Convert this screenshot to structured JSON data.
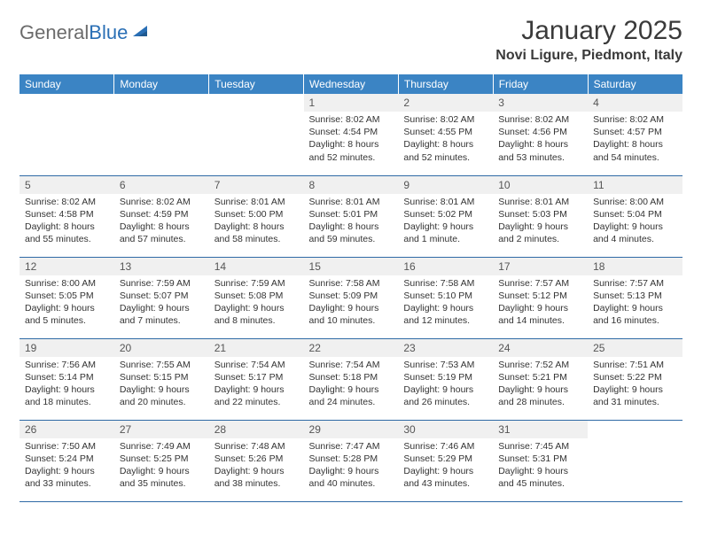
{
  "brand": {
    "name1": "General",
    "name2": "Blue"
  },
  "header": {
    "month_title": "January 2025",
    "location": "Novi Ligure, Piedmont, Italy"
  },
  "colors": {
    "header_bg": "#3b84c4",
    "header_text": "#ffffff",
    "daynum_bg": "#f0f0f0",
    "row_border": "#2f6aa5",
    "logo_gray": "#6b6b6b",
    "logo_blue": "#2a6fb5"
  },
  "columns": [
    "Sunday",
    "Monday",
    "Tuesday",
    "Wednesday",
    "Thursday",
    "Friday",
    "Saturday"
  ],
  "weeks": [
    [
      null,
      null,
      null,
      {
        "n": "1",
        "sr": "8:02 AM",
        "ss": "4:54 PM",
        "dl": "8 hours and 52 minutes."
      },
      {
        "n": "2",
        "sr": "8:02 AM",
        "ss": "4:55 PM",
        "dl": "8 hours and 52 minutes."
      },
      {
        "n": "3",
        "sr": "8:02 AM",
        "ss": "4:56 PM",
        "dl": "8 hours and 53 minutes."
      },
      {
        "n": "4",
        "sr": "8:02 AM",
        "ss": "4:57 PM",
        "dl": "8 hours and 54 minutes."
      }
    ],
    [
      {
        "n": "5",
        "sr": "8:02 AM",
        "ss": "4:58 PM",
        "dl": "8 hours and 55 minutes."
      },
      {
        "n": "6",
        "sr": "8:02 AM",
        "ss": "4:59 PM",
        "dl": "8 hours and 57 minutes."
      },
      {
        "n": "7",
        "sr": "8:01 AM",
        "ss": "5:00 PM",
        "dl": "8 hours and 58 minutes."
      },
      {
        "n": "8",
        "sr": "8:01 AM",
        "ss": "5:01 PM",
        "dl": "8 hours and 59 minutes."
      },
      {
        "n": "9",
        "sr": "8:01 AM",
        "ss": "5:02 PM",
        "dl": "9 hours and 1 minute."
      },
      {
        "n": "10",
        "sr": "8:01 AM",
        "ss": "5:03 PM",
        "dl": "9 hours and 2 minutes."
      },
      {
        "n": "11",
        "sr": "8:00 AM",
        "ss": "5:04 PM",
        "dl": "9 hours and 4 minutes."
      }
    ],
    [
      {
        "n": "12",
        "sr": "8:00 AM",
        "ss": "5:05 PM",
        "dl": "9 hours and 5 minutes."
      },
      {
        "n": "13",
        "sr": "7:59 AM",
        "ss": "5:07 PM",
        "dl": "9 hours and 7 minutes."
      },
      {
        "n": "14",
        "sr": "7:59 AM",
        "ss": "5:08 PM",
        "dl": "9 hours and 8 minutes."
      },
      {
        "n": "15",
        "sr": "7:58 AM",
        "ss": "5:09 PM",
        "dl": "9 hours and 10 minutes."
      },
      {
        "n": "16",
        "sr": "7:58 AM",
        "ss": "5:10 PM",
        "dl": "9 hours and 12 minutes."
      },
      {
        "n": "17",
        "sr": "7:57 AM",
        "ss": "5:12 PM",
        "dl": "9 hours and 14 minutes."
      },
      {
        "n": "18",
        "sr": "7:57 AM",
        "ss": "5:13 PM",
        "dl": "9 hours and 16 minutes."
      }
    ],
    [
      {
        "n": "19",
        "sr": "7:56 AM",
        "ss": "5:14 PM",
        "dl": "9 hours and 18 minutes."
      },
      {
        "n": "20",
        "sr": "7:55 AM",
        "ss": "5:15 PM",
        "dl": "9 hours and 20 minutes."
      },
      {
        "n": "21",
        "sr": "7:54 AM",
        "ss": "5:17 PM",
        "dl": "9 hours and 22 minutes."
      },
      {
        "n": "22",
        "sr": "7:54 AM",
        "ss": "5:18 PM",
        "dl": "9 hours and 24 minutes."
      },
      {
        "n": "23",
        "sr": "7:53 AM",
        "ss": "5:19 PM",
        "dl": "9 hours and 26 minutes."
      },
      {
        "n": "24",
        "sr": "7:52 AM",
        "ss": "5:21 PM",
        "dl": "9 hours and 28 minutes."
      },
      {
        "n": "25",
        "sr": "7:51 AM",
        "ss": "5:22 PM",
        "dl": "9 hours and 31 minutes."
      }
    ],
    [
      {
        "n": "26",
        "sr": "7:50 AM",
        "ss": "5:24 PM",
        "dl": "9 hours and 33 minutes."
      },
      {
        "n": "27",
        "sr": "7:49 AM",
        "ss": "5:25 PM",
        "dl": "9 hours and 35 minutes."
      },
      {
        "n": "28",
        "sr": "7:48 AM",
        "ss": "5:26 PM",
        "dl": "9 hours and 38 minutes."
      },
      {
        "n": "29",
        "sr": "7:47 AM",
        "ss": "5:28 PM",
        "dl": "9 hours and 40 minutes."
      },
      {
        "n": "30",
        "sr": "7:46 AM",
        "ss": "5:29 PM",
        "dl": "9 hours and 43 minutes."
      },
      {
        "n": "31",
        "sr": "7:45 AM",
        "ss": "5:31 PM",
        "dl": "9 hours and 45 minutes."
      },
      null
    ]
  ],
  "labels": {
    "sunrise": "Sunrise:",
    "sunset": "Sunset:",
    "daylight": "Daylight:"
  }
}
